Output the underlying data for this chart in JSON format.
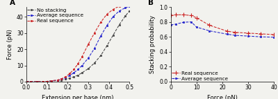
{
  "panel_A": {
    "no_stacking": {
      "x": [
        0.0,
        0.02,
        0.05,
        0.08,
        0.1,
        0.12,
        0.15,
        0.17,
        0.19,
        0.21,
        0.23,
        0.25,
        0.27,
        0.3,
        0.33,
        0.36,
        0.39,
        0.42,
        0.45,
        0.48,
        0.5
      ],
      "y": [
        0.0,
        0.0,
        0.05,
        0.1,
        0.2,
        0.4,
        0.7,
        1.0,
        1.5,
        2.2,
        3.0,
        4.0,
        5.5,
        8.0,
        11.5,
        16.0,
        22.0,
        28.5,
        35.0,
        40.5,
        43.5
      ],
      "color": "#444444",
      "linestyle": "--",
      "marker": "s",
      "markersize": 1.8,
      "label": "No stacking"
    },
    "average_sequence": {
      "x": [
        0.0,
        0.02,
        0.05,
        0.08,
        0.1,
        0.12,
        0.15,
        0.17,
        0.19,
        0.21,
        0.23,
        0.25,
        0.27,
        0.3,
        0.33,
        0.36,
        0.39,
        0.42,
        0.45,
        0.48,
        0.5
      ],
      "y": [
        0.0,
        0.0,
        0.05,
        0.1,
        0.2,
        0.5,
        0.9,
        1.5,
        2.5,
        3.8,
        5.5,
        7.5,
        10.0,
        14.5,
        20.5,
        28.0,
        34.5,
        40.0,
        43.5,
        45.5,
        46.5
      ],
      "color": "#2222cc",
      "linestyle": "--",
      "marker": "s",
      "markersize": 1.8,
      "label": "Average sequence"
    },
    "real_sequence": {
      "x": [
        0.0,
        0.02,
        0.05,
        0.08,
        0.1,
        0.12,
        0.15,
        0.17,
        0.19,
        0.21,
        0.23,
        0.25,
        0.27,
        0.3,
        0.33,
        0.36,
        0.39,
        0.42,
        0.45,
        0.48,
        0.5
      ],
      "y": [
        0.0,
        0.0,
        0.05,
        0.1,
        0.2,
        0.5,
        1.0,
        1.8,
        3.0,
        5.0,
        7.5,
        11.0,
        15.5,
        23.0,
        30.0,
        36.5,
        41.5,
        44.5,
        46.5,
        47.5,
        48.0
      ],
      "color": "#cc2222",
      "linestyle": "--",
      "marker": "s",
      "markersize": 1.8,
      "label": "Real sequence"
    },
    "xlabel": "Extension per base (nm)",
    "ylabel": "Force (pN)",
    "xlim": [
      0.0,
      0.5
    ],
    "ylim": [
      0,
      46
    ],
    "xticks": [
      0.0,
      0.1,
      0.2,
      0.3,
      0.4,
      0.5
    ],
    "yticks": [
      0,
      10,
      20,
      30,
      40
    ]
  },
  "panel_B": {
    "real_sequence": {
      "x": [
        0,
        2,
        5,
        8,
        10,
        15,
        22,
        25,
        30,
        35,
        40
      ],
      "y": [
        0.885,
        0.895,
        0.895,
        0.885,
        0.855,
        0.755,
        0.675,
        0.66,
        0.65,
        0.64,
        0.63
      ],
      "color": "#cc2222",
      "linestyle": "--",
      "marker": "+",
      "markersize": 4,
      "markeredgewidth": 0.8,
      "label": "Real sequence"
    },
    "average_sequence": {
      "x": [
        0,
        2,
        5,
        8,
        10,
        15,
        22,
        25,
        30,
        35,
        40
      ],
      "y": [
        0.76,
        0.77,
        0.795,
        0.8,
        0.73,
        0.68,
        0.635,
        0.62,
        0.61,
        0.6,
        0.595
      ],
      "color": "#2222cc",
      "linestyle": "--",
      "marker": "s",
      "markersize": 2.0,
      "markeredgewidth": 0.5,
      "label": "Average sequence"
    },
    "xlabel": "Force (pN)",
    "ylabel": "Stacking probability",
    "xlim": [
      0,
      40
    ],
    "ylim": [
      0.0,
      1.0
    ],
    "xticks": [
      0,
      10,
      20,
      30,
      40
    ],
    "yticks": [
      0.0,
      0.2,
      0.4,
      0.6,
      0.8,
      1.0
    ]
  },
  "background_color": "#f2f2ee",
  "tick_fontsize": 5.5,
  "label_fontsize": 6.0,
  "legend_fontsize": 5.2
}
